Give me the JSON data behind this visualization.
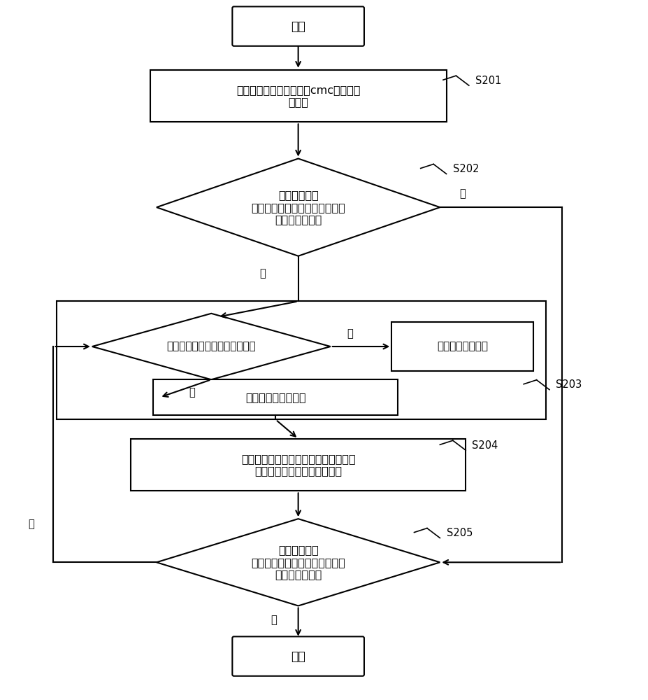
{
  "bg_color": "#ffffff",
  "line_color": "#000000",
  "text_color": "#000000",
  "lw": 1.5,
  "start_text": "开始",
  "end_text": "结束",
  "s201_text": "在存储软件启动后，获取cmc的当前版\n本信息",
  "s202_text": "判断所述存储\n软件中的兼容列表中是否存在所\n述当前版本信息",
  "s203_diamond_text": "判断更新次数是否超过预定次数",
  "s203_alert_text": "向管理员发出告警",
  "s203_add_text": "将所述更新次数加一",
  "s204_text": "将所述当前版本信息替换为所述兼容列\n表中包含的一个标准版本信息",
  "s205_text": "重新判断存储\n软件中的兼容列表中是否存在所\n述当前版本信息",
  "yes_text": "是",
  "no_text": "否",
  "s201_label": "S201",
  "s202_label": "S202",
  "s203_label": "S203",
  "s204_label": "S204",
  "s205_label": "S205"
}
